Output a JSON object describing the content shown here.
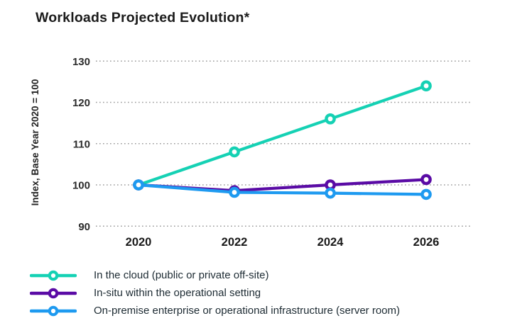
{
  "title": "Workloads Projected Evolution*",
  "colors": {
    "teal": "#15D1B4",
    "purple": "#5A0BA5",
    "blue": "#1E9AF0",
    "grid": "#9A9A9A",
    "tick_text": "#2B2B2B",
    "axis_text": "#222222",
    "x_tick_text": "#1A1A1A",
    "legend_text": "#1D2B33",
    "title_text": "#1B1B1B"
  },
  "chart_data": {
    "type": "line",
    "title": "Workloads Projected Evolution*",
    "categories": [
      "2020",
      "2022",
      "2024",
      "2026"
    ],
    "series": [
      {
        "name": "In the cloud (public or private off-site)",
        "color": "#15D1B4",
        "values": [
          100,
          108,
          116,
          124
        ]
      },
      {
        "name": "In-situ within the operational setting",
        "color": "#5A0BA5",
        "values": [
          100,
          98.6,
          100,
          101.3
        ]
      },
      {
        "name": "On-premise enterprise or operational infrastructure (server room)",
        "color": "#1E9AF0",
        "values": [
          100,
          98.2,
          98,
          97.7
        ]
      }
    ],
    "xlabel": "",
    "ylabel": "Index, Base Year 2020 = 100",
    "ylim": [
      90,
      130
    ],
    "yticks": [
      90,
      100,
      110,
      120,
      130
    ],
    "grid": "horizontal-dotted",
    "legend_position": "bottom-left",
    "marker": "open-circle"
  }
}
